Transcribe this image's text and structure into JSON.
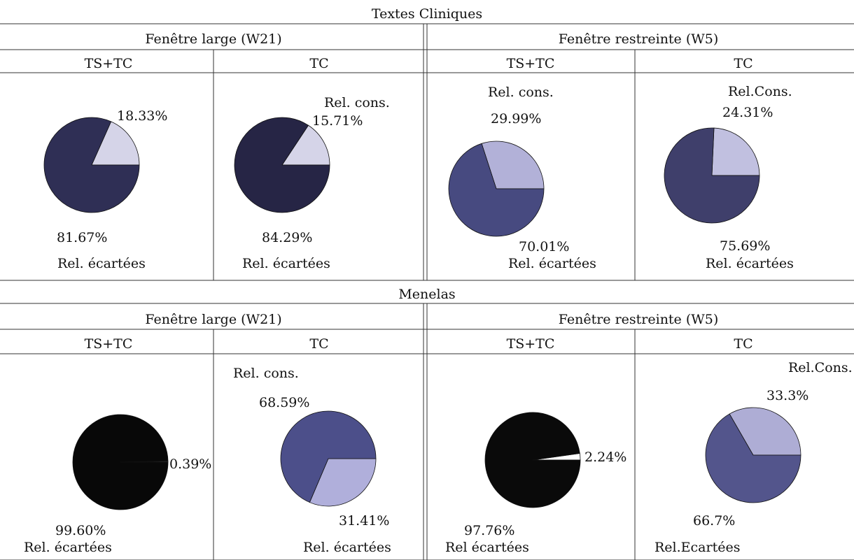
{
  "sections": [
    {
      "title": "Textes Cliniques",
      "windows": [
        "Fenêtre large (W21)",
        "Fenêtre restreinte (W5)"
      ],
      "columns": [
        "TS+TC",
        "TC",
        "TS+TC",
        "TC"
      ]
    },
    {
      "title": "Menelas",
      "windows": [
        "Fenêtre large (W21)",
        "Fenêtre restreinte (W5)"
      ],
      "columns": [
        "TS+TC",
        "TC",
        "TS+TC",
        "TC"
      ]
    }
  ],
  "chart_data": [
    {
      "type": "pie",
      "section": "Textes Cliniques",
      "window": "Fenêtre large (W21)",
      "column": "TS+TC",
      "slices": [
        {
          "value": 18.33,
          "label": "18.33%",
          "name": "",
          "color": "#d5d4e8"
        },
        {
          "value": 81.67,
          "label": "81.67%",
          "name": "Rel. écartées",
          "color": "#2f2f55"
        }
      ]
    },
    {
      "type": "pie",
      "section": "Textes Cliniques",
      "window": "Fenêtre large (W21)",
      "column": "TC",
      "slices": [
        {
          "value": 15.71,
          "label": "15.71%",
          "name": "Rel. cons.",
          "color": "#d5d4e8"
        },
        {
          "value": 84.29,
          "label": "84.29%",
          "name": "Rel. écartées",
          "color": "#262545"
        }
      ]
    },
    {
      "type": "pie",
      "section": "Textes Cliniques",
      "window": "Fenêtre restreinte (W5)",
      "column": "TS+TC",
      "slices": [
        {
          "value": 29.99,
          "label": "29.99%",
          "name": "Rel. cons.",
          "color": "#b2b1d8"
        },
        {
          "value": 70.01,
          "label": "70.01%",
          "name": "Rel. écartées",
          "color": "#474a80"
        }
      ]
    },
    {
      "type": "pie",
      "section": "Textes Cliniques",
      "window": "Fenêtre restreinte (W5)",
      "column": "TC",
      "slices": [
        {
          "value": 24.31,
          "label": "24.31%",
          "name": "Rel.Cons.",
          "color": "#c1c0e0"
        },
        {
          "value": 75.69,
          "label": "75.69%",
          "name": "Rel. écartées",
          "color": "#3f3f6b"
        }
      ]
    },
    {
      "type": "pie",
      "section": "Menelas",
      "window": "Fenêtre large (W21)",
      "column": "TS+TC",
      "slices": [
        {
          "value": 0.39,
          "label": "0.39%",
          "name": "",
          "color": "#2e2e2e"
        },
        {
          "value": 99.6,
          "label": "99.60%",
          "name": "Rel. écartées",
          "color": "#080808"
        }
      ]
    },
    {
      "type": "pie",
      "section": "Menelas",
      "window": "Fenêtre large (W21)",
      "column": "TC",
      "slices": [
        {
          "value": 31.41,
          "label": "31.41%",
          "name": "",
          "color": "#b0afdb"
        },
        {
          "value": 68.59,
          "label": "68.59%",
          "name": "Rel. cons.",
          "color": "#4c4f8a"
        }
      ],
      "footer": "Rel. écartées"
    },
    {
      "type": "pie",
      "section": "Menelas",
      "window": "Fenêtre restreinte (W5)",
      "column": "TS+TC",
      "slices": [
        {
          "value": 2.24,
          "label": "2.24%",
          "name": "",
          "color": "#ffffff"
        },
        {
          "value": 97.76,
          "label": "97.76%",
          "name": "Rel écartées",
          "color": "#0a0a0a"
        }
      ]
    },
    {
      "type": "pie",
      "section": "Menelas",
      "window": "Fenêtre restreinte (W5)",
      "column": "TC",
      "slices": [
        {
          "value": 33.3,
          "label": "33.3%",
          "name": "Rel.Cons.",
          "color": "#aeadd5"
        },
        {
          "value": 66.7,
          "label": "66.7%",
          "name": "Rel.Ecartées",
          "color": "#53558c"
        }
      ]
    }
  ]
}
